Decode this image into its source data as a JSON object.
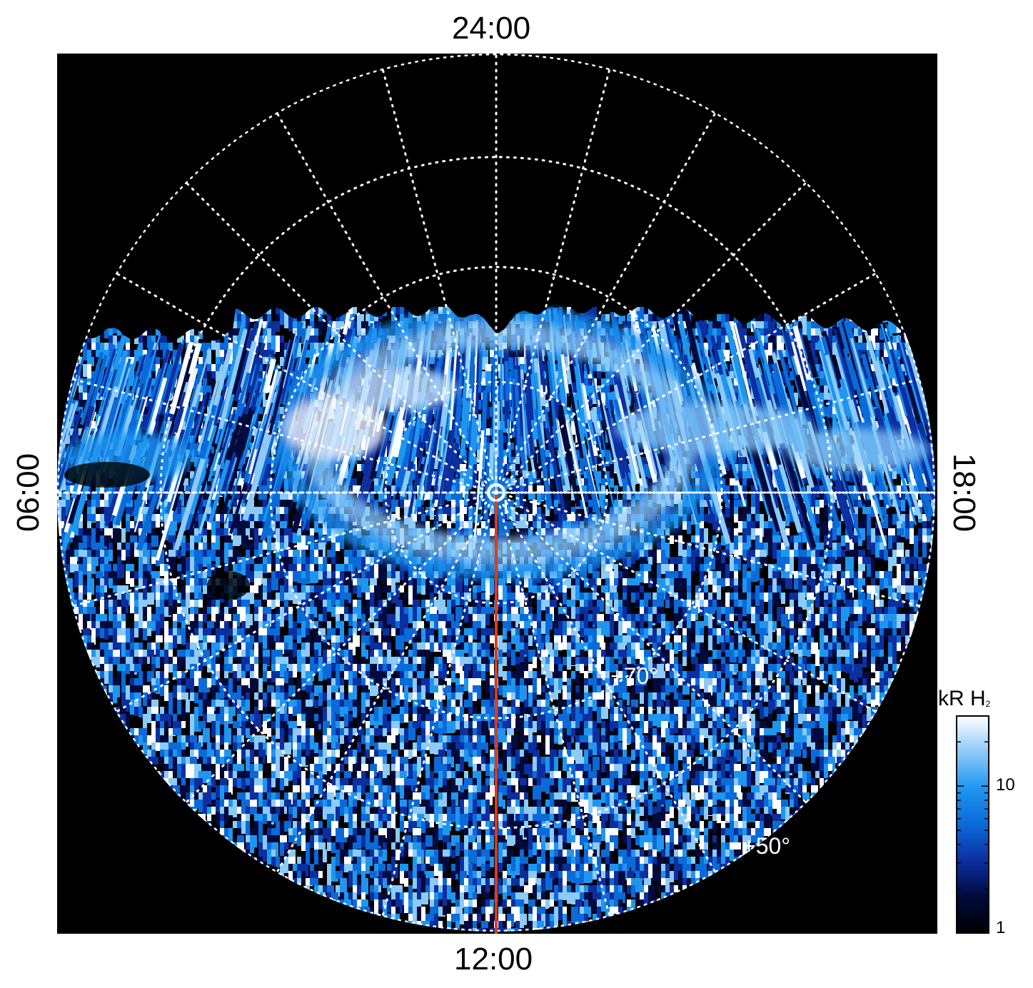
{
  "map": {
    "local_time_labels": {
      "top": "24:00",
      "bottom": "12:00",
      "left": "06:00",
      "right": "18:00"
    },
    "latitude_labels": [
      "+70°",
      "+50°"
    ],
    "grid": "dotted",
    "background_color": "#000000",
    "grid_color": "#ffffff",
    "meridian_line_color": "#e23a16"
  },
  "colorbar": {
    "title": "kR H",
    "title_subscript": "2",
    "scale": "log",
    "range": [
      1,
      30
    ],
    "ticks": [
      "10",
      "1"
    ],
    "colors": [
      "#000000",
      "#000a3c",
      "#0c2fa0",
      "#0a6ad8",
      "#1e96f0",
      "#8ccaf8",
      "#ffffff"
    ]
  }
}
